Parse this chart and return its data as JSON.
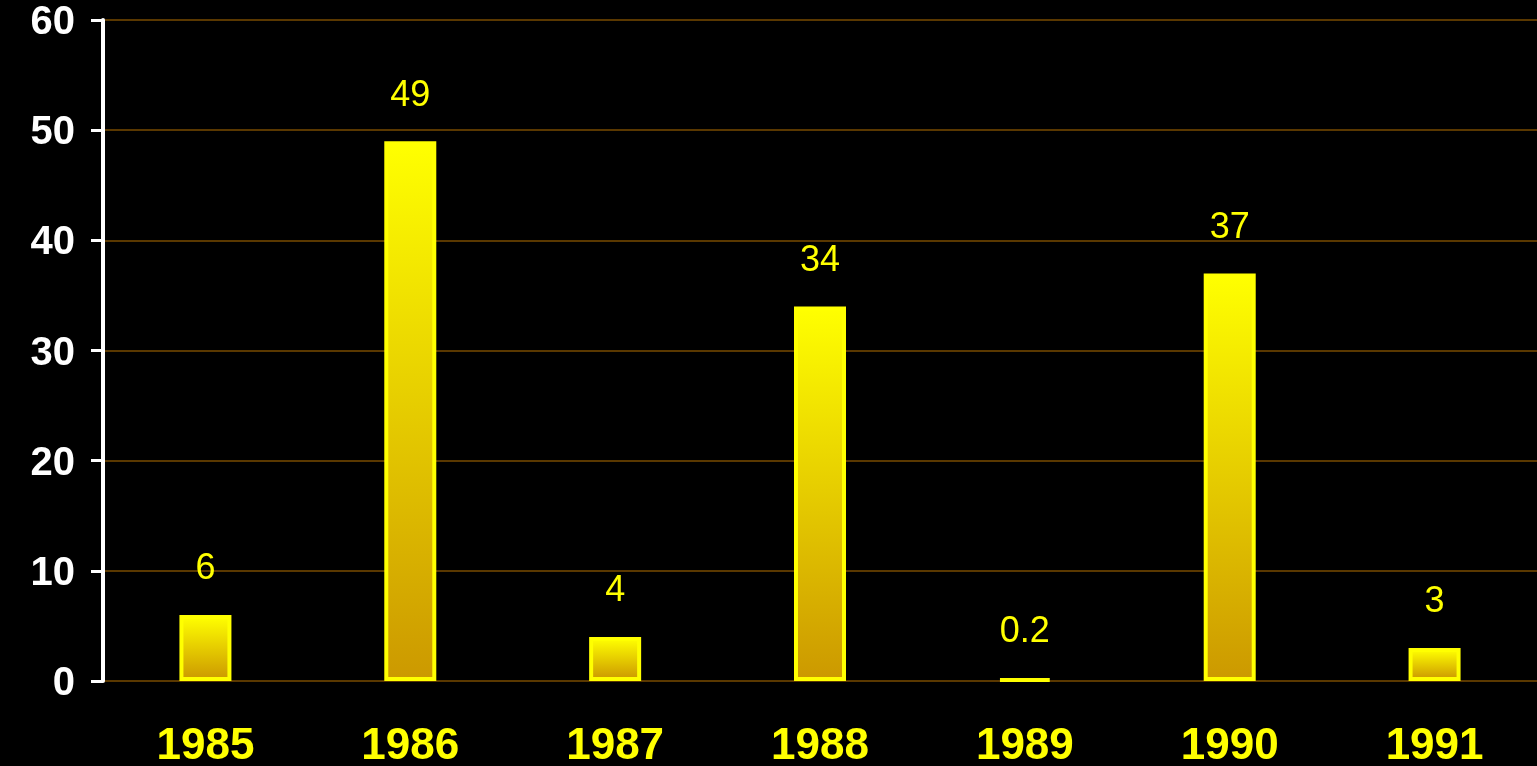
{
  "chart_data": {
    "type": "bar",
    "categories": [
      "1985",
      "1986",
      "1987",
      "1988",
      "1989",
      "1990",
      "1991"
    ],
    "values": [
      6,
      49,
      4,
      34,
      0.2,
      37,
      3
    ],
    "color": "#ffff00",
    "ylim": [
      0,
      60
    ],
    "yticks": [
      0,
      10,
      20,
      30,
      40,
      50,
      60
    ],
    "grid": "y",
    "data_labels": true
  }
}
